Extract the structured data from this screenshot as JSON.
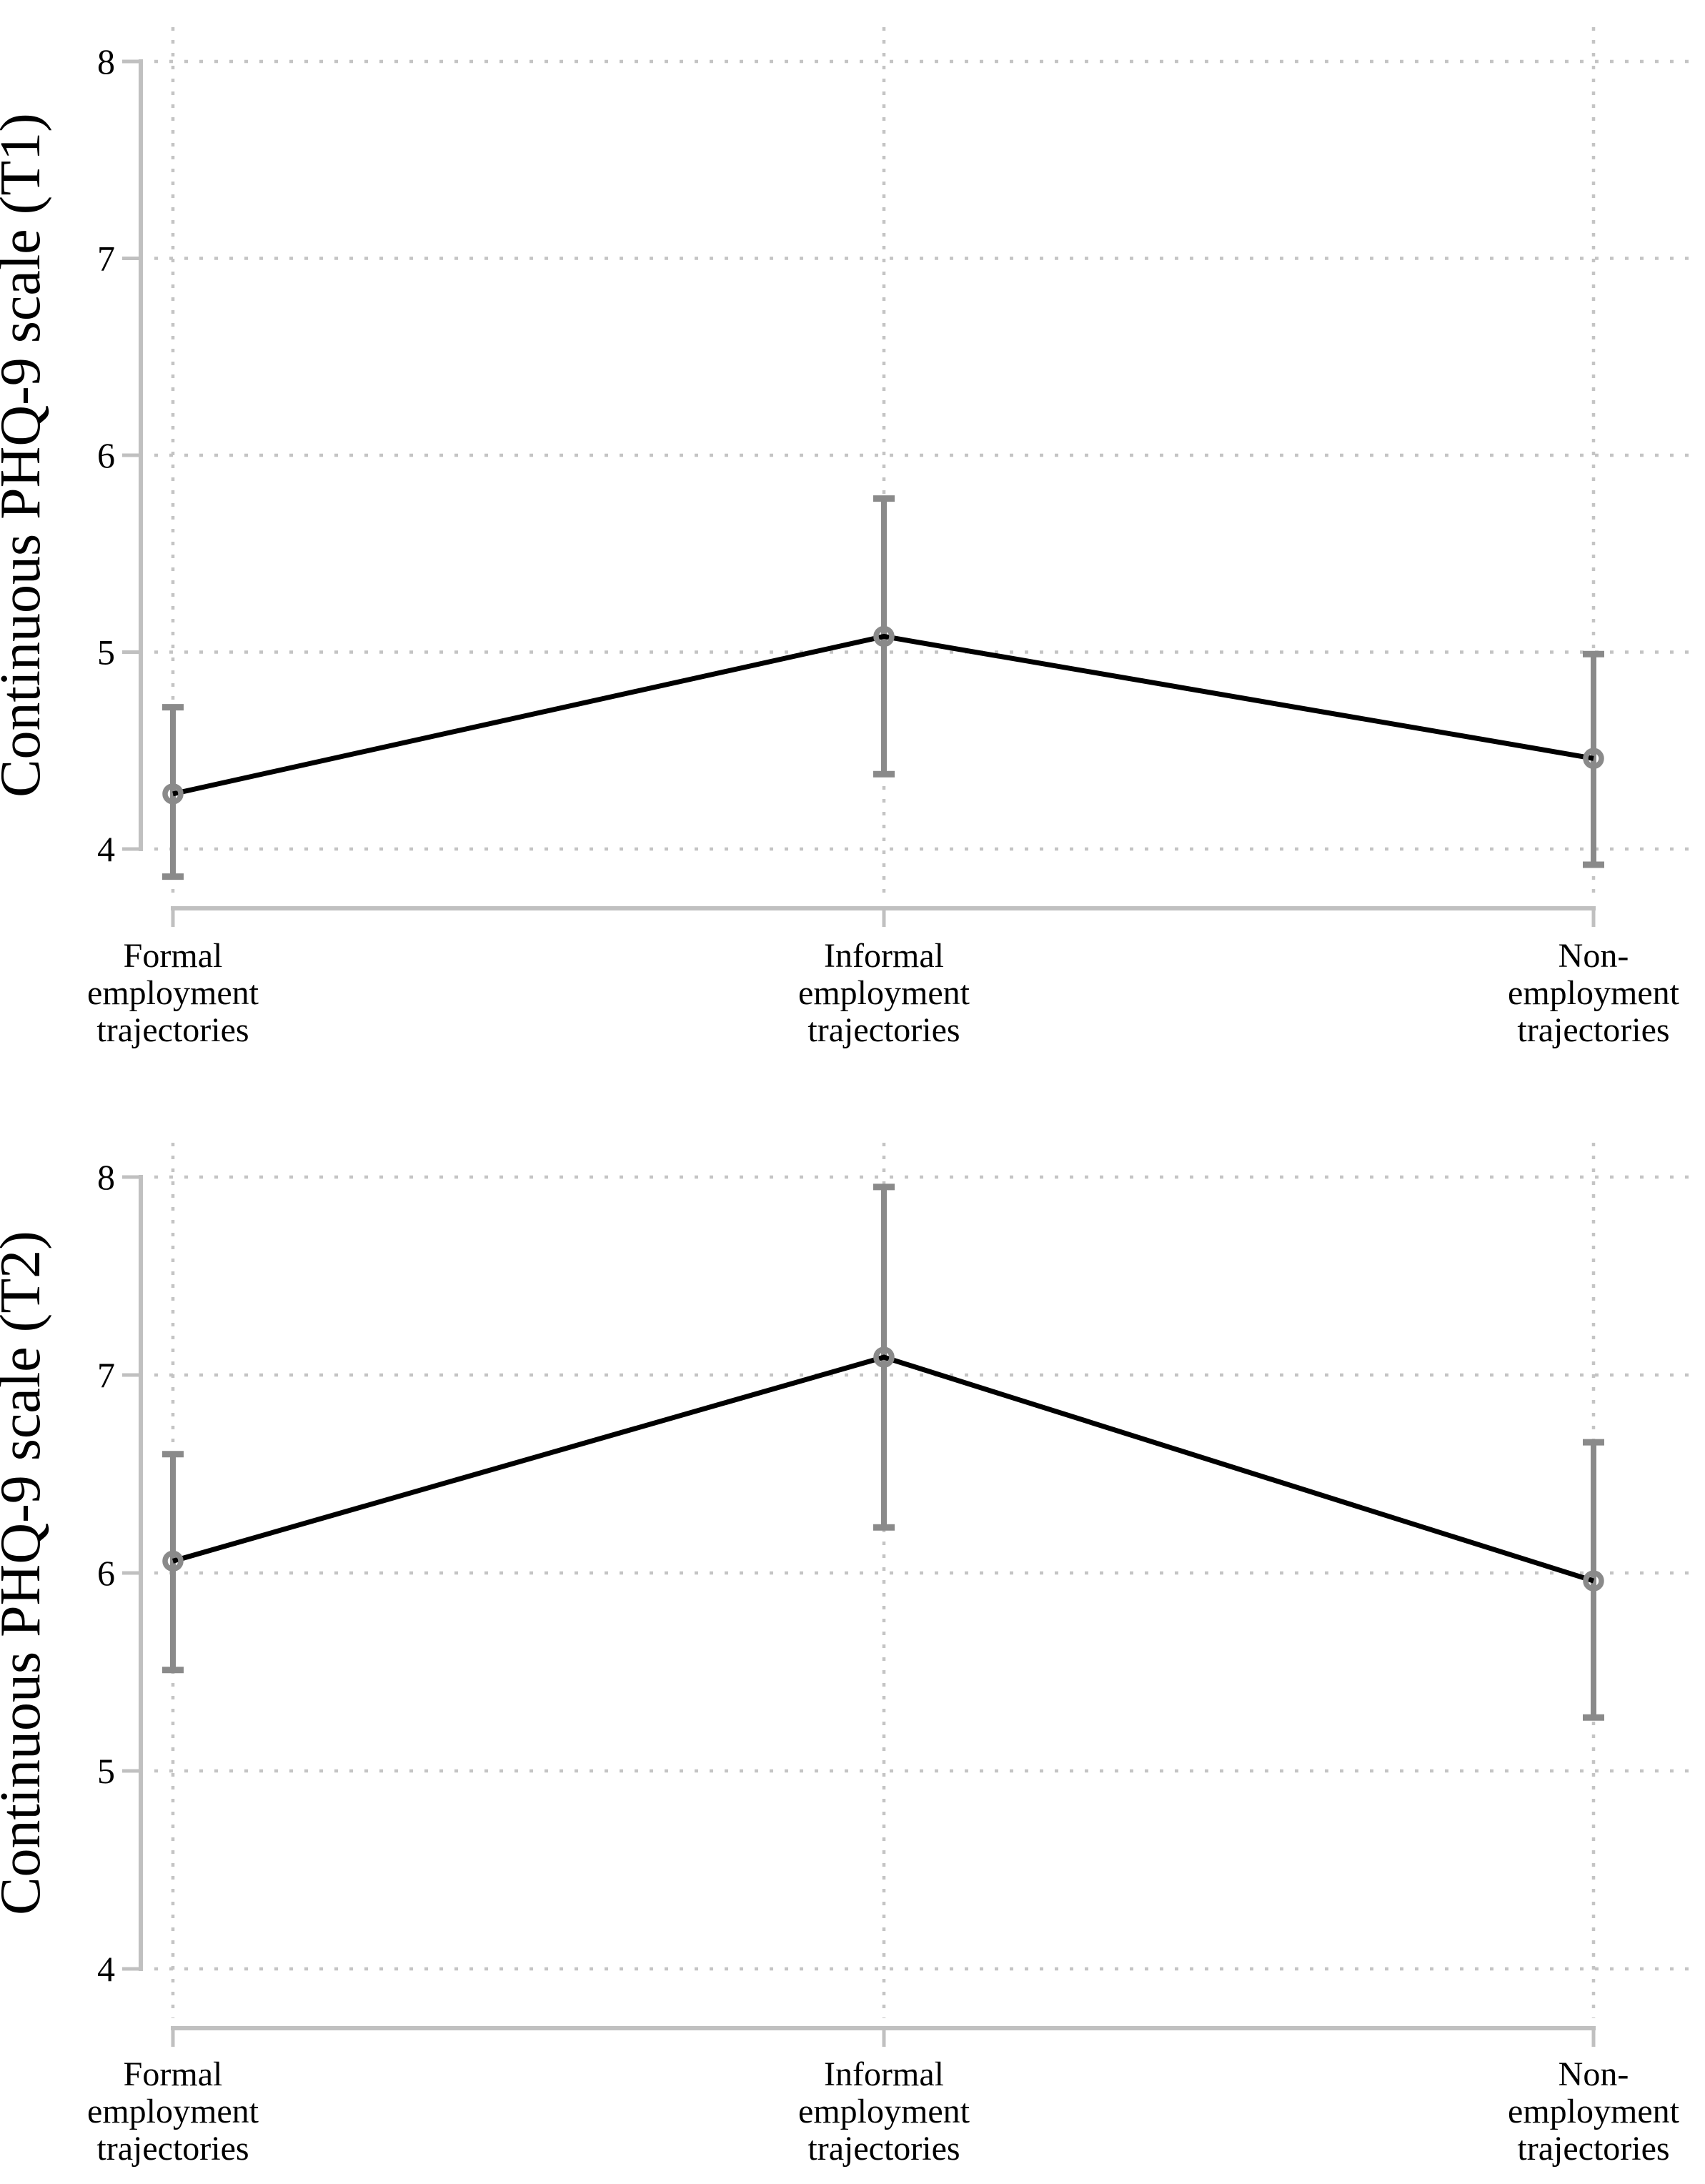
{
  "chart_data": {
    "type": "line",
    "description": "Two stacked panels of predicted means with 95% confidence-interval error bars across three employment trajectory groups",
    "categories_lines": [
      [
        "Formal",
        "employment",
        "trajectories"
      ],
      [
        "Informal",
        "employment",
        "trajectories"
      ],
      [
        "Non-",
        "employment",
        "trajectories"
      ]
    ],
    "panels": [
      {
        "id": "T1",
        "ylabel": "Continuous PHQ-9 scale (T1)",
        "ylim": [
          4,
          8
        ],
        "yticks": [
          8,
          7,
          6,
          5,
          4
        ],
        "grid": "dotted",
        "series": [
          {
            "points": [
              {
                "category": "Formal employment trajectories",
                "mean": 4.28,
                "ci_low": 3.86,
                "ci_high": 4.72
              },
              {
                "category": "Informal employment trajectories",
                "mean": 5.08,
                "ci_low": 4.38,
                "ci_high": 5.78
              },
              {
                "category": "Non-employment trajectories",
                "mean": 4.46,
                "ci_low": 3.92,
                "ci_high": 4.99
              }
            ]
          }
        ]
      },
      {
        "id": "T2",
        "ylabel": "Continuous PHQ-9 scale (T2)",
        "ylim": [
          4,
          8
        ],
        "yticks": [
          8,
          7,
          6,
          5,
          4
        ],
        "grid": "dotted",
        "series": [
          {
            "points": [
              {
                "category": "Formal employment trajectories",
                "mean": 6.06,
                "ci_low": 5.51,
                "ci_high": 6.6
              },
              {
                "category": "Informal employment trajectories",
                "mean": 7.09,
                "ci_low": 6.23,
                "ci_high": 7.95
              },
              {
                "category": "Non-employment trajectories",
                "mean": 5.96,
                "ci_low": 5.27,
                "ci_high": 6.66
              }
            ]
          }
        ]
      }
    ],
    "colors": {
      "line": "#000000",
      "error_bar": "#8a8a8a",
      "marker": "#8a8a8a",
      "axis": "#c0c0c0",
      "grid_dots": "#c4c4c4",
      "text": "#000000",
      "background": "#ffffff"
    },
    "legend": "none"
  }
}
